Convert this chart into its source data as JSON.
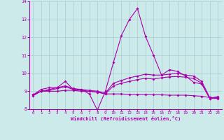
{
  "xlabel": "Windchill (Refroidissement éolien,°C)",
  "background_color": "#cceaea",
  "grid_color": "#aacccc",
  "line_color": "#aa00aa",
  "xlim": [
    -0.5,
    23.5
  ],
  "ylim": [
    8.0,
    14.0
  ],
  "yticks": [
    8,
    9,
    10,
    11,
    12,
    13,
    14
  ],
  "xticks": [
    0,
    1,
    2,
    3,
    4,
    5,
    6,
    7,
    8,
    9,
    10,
    11,
    12,
    13,
    14,
    15,
    16,
    17,
    18,
    19,
    20,
    21,
    22,
    23
  ],
  "series1_x": [
    0,
    1,
    2,
    3,
    4,
    5,
    6,
    7,
    8,
    9,
    10,
    11,
    12,
    13,
    14,
    15,
    16,
    17,
    18,
    19,
    20,
    21,
    22,
    23
  ],
  "series1_y": [
    8.8,
    9.1,
    9.2,
    9.2,
    9.55,
    9.1,
    9.1,
    8.85,
    7.95,
    9.0,
    10.6,
    12.1,
    13.0,
    13.6,
    12.05,
    11.0,
    9.9,
    10.2,
    10.1,
    9.85,
    9.5,
    9.4,
    8.6,
    8.7
  ],
  "series2_x": [
    0,
    1,
    2,
    3,
    4,
    5,
    6,
    7,
    8,
    9,
    10,
    11,
    12,
    13,
    14,
    15,
    16,
    17,
    18,
    19,
    20,
    21,
    22,
    23
  ],
  "series2_y": [
    8.8,
    9.0,
    9.1,
    9.2,
    9.3,
    9.15,
    9.1,
    9.05,
    9.0,
    8.9,
    9.45,
    9.6,
    9.75,
    9.85,
    9.95,
    9.9,
    9.9,
    9.95,
    10.0,
    9.9,
    9.85,
    9.55,
    8.65,
    8.65
  ],
  "series3_x": [
    0,
    1,
    2,
    3,
    4,
    5,
    6,
    7,
    8,
    9,
    10,
    11,
    12,
    13,
    14,
    15,
    16,
    17,
    18,
    19,
    20,
    21,
    22,
    23
  ],
  "series3_y": [
    8.8,
    9.0,
    9.05,
    9.15,
    9.25,
    9.1,
    9.05,
    9.0,
    8.95,
    8.85,
    9.3,
    9.45,
    9.55,
    9.65,
    9.72,
    9.68,
    9.75,
    9.8,
    9.82,
    9.78,
    9.7,
    9.45,
    8.6,
    8.6
  ],
  "series4_x": [
    0,
    1,
    2,
    3,
    4,
    5,
    6,
    7,
    8,
    9,
    10,
    11,
    12,
    13,
    14,
    15,
    16,
    17,
    18,
    19,
    20,
    21,
    22,
    23
  ],
  "series4_y": [
    8.75,
    9.0,
    9.0,
    9.0,
    9.05,
    9.05,
    9.0,
    9.0,
    8.95,
    8.85,
    8.85,
    8.85,
    8.82,
    8.82,
    8.82,
    8.8,
    8.8,
    8.78,
    8.78,
    8.78,
    8.75,
    8.72,
    8.65,
    8.62
  ]
}
